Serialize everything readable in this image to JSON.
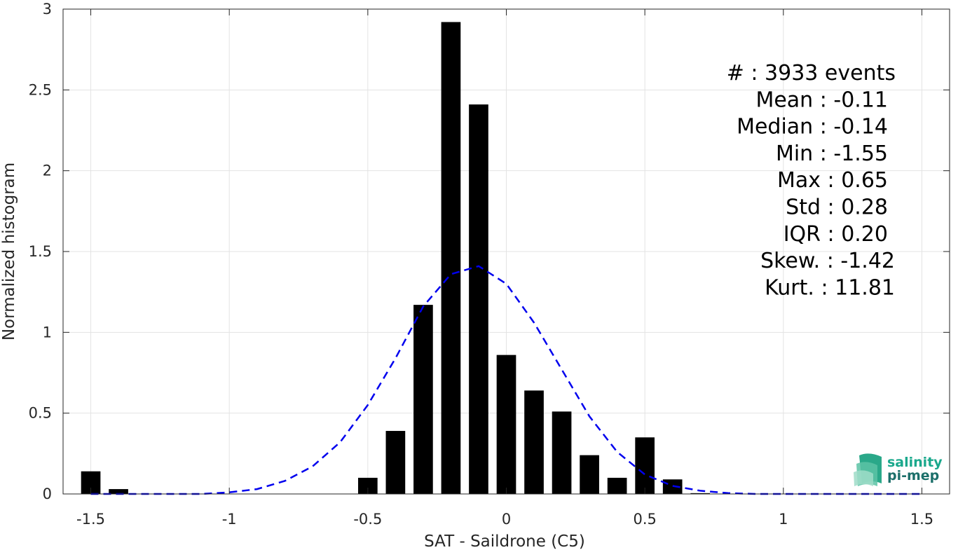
{
  "chart_data": {
    "type": "bar",
    "xlabel": "SAT - Saildrone (C5)",
    "ylabel": "Normalized histogram",
    "xlim": [
      -1.6,
      1.6
    ],
    "ylim": [
      0,
      3
    ],
    "xticks": [
      -1.5,
      -1,
      -0.5,
      0,
      0.5,
      1,
      1.5
    ],
    "xtick_labels": [
      "-1.5",
      "-1",
      "-0.5",
      "0",
      "0.5",
      "1",
      "1.5"
    ],
    "yticks": [
      0,
      0.5,
      1,
      1.5,
      2,
      2.5,
      3
    ],
    "ytick_labels": [
      "0",
      "0.5",
      "1",
      "1.5",
      "2",
      "2.5",
      "3"
    ],
    "grid": true,
    "bar_color": "#000000",
    "bar_width": 0.07,
    "bars": {
      "x": [
        -1.5,
        -1.4,
        -0.5,
        -0.4,
        -0.3,
        -0.2,
        -0.1,
        0.0,
        0.1,
        0.2,
        0.3,
        0.4,
        0.5,
        0.6,
        0.7
      ],
      "values": [
        0.14,
        0.03,
        0.1,
        0.39,
        1.17,
        2.92,
        2.41,
        0.86,
        0.64,
        0.51,
        0.24,
        0.1,
        0.35,
        0.09,
        0.005
      ]
    },
    "fit_curve": {
      "style": "dashed",
      "color": "#0000ee",
      "x": [
        -1.5,
        -1.4,
        -1.3,
        -1.2,
        -1.1,
        -1.0,
        -0.9,
        -0.8,
        -0.7,
        -0.6,
        -0.5,
        -0.4,
        -0.3,
        -0.2,
        -0.1,
        0.0,
        0.1,
        0.2,
        0.3,
        0.4,
        0.5,
        0.6,
        0.7,
        0.8,
        0.9,
        1.0,
        1.1,
        1.2,
        1.3,
        1.4,
        1.5
      ],
      "y": [
        0.0,
        0.0,
        0.0,
        0.0,
        0.0,
        0.01,
        0.03,
        0.08,
        0.17,
        0.32,
        0.55,
        0.84,
        1.16,
        1.36,
        1.41,
        1.3,
        1.06,
        0.77,
        0.48,
        0.26,
        0.12,
        0.05,
        0.02,
        0.005,
        0.0,
        0.0,
        0.0,
        0.0,
        0.0,
        0.0,
        0.0
      ]
    },
    "stats": [
      "#  : 3933 events",
      "Mean : -0.11",
      "Median : -0.14",
      "Min : -1.55",
      "Max : 0.65",
      "Std : 0.28",
      "IQR : 0.20",
      "Skew. : -1.42",
      "Kurt. : 11.81"
    ]
  },
  "logo": {
    "line1": "salinity",
    "line2": "pi-mep",
    "color": "#1aa88c"
  }
}
